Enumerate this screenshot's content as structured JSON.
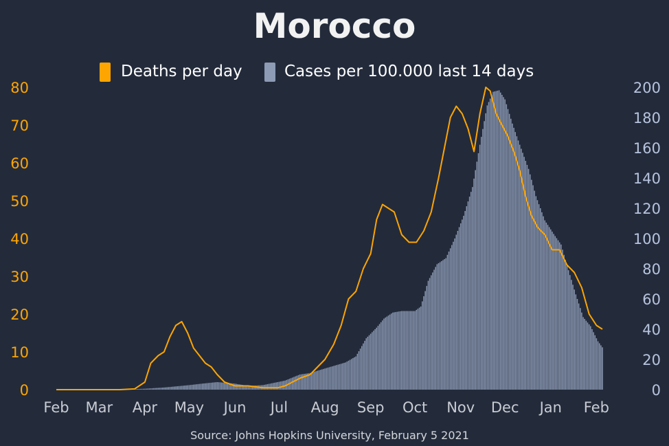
{
  "chart_data": {
    "type": "bar+line",
    "title": "Morocco",
    "source": "Source: Johns Hopkins University, February 5 2021",
    "legend": {
      "placement": "top-center"
    },
    "colors": {
      "background": "#232b3b",
      "deaths": "#ffa500",
      "cases": "#8d9bb5",
      "text": "#ffffff",
      "tick": "#c9ccd3"
    },
    "x_axis": {
      "ticks": [
        "Feb",
        "Mar",
        "Apr",
        "May",
        "Jun",
        "Jul",
        "Aug",
        "Sep",
        "Oct",
        "Nov",
        "Dec",
        "Jan",
        "Feb"
      ]
    },
    "y_left": {
      "ticks": [
        0,
        10,
        20,
        30,
        40,
        50,
        60,
        70,
        80
      ],
      "ylim": [
        0,
        80
      ]
    },
    "y_right": {
      "ticks": [
        0,
        20,
        40,
        60,
        80,
        100,
        120,
        140,
        160,
        180,
        200
      ],
      "ylim": [
        0,
        200
      ]
    },
    "x_range": [
      "2020-02-01",
      "2021-02-05"
    ],
    "series": [
      {
        "name": "Deaths per day",
        "kind": "line",
        "axis": "left",
        "points": [
          [
            "2020-02-01",
            0
          ],
          [
            "2020-03-15",
            0
          ],
          [
            "2020-03-25",
            0.2
          ],
          [
            "2020-04-01",
            2
          ],
          [
            "2020-04-05",
            7
          ],
          [
            "2020-04-10",
            9
          ],
          [
            "2020-04-14",
            10
          ],
          [
            "2020-04-18",
            14
          ],
          [
            "2020-04-22",
            17
          ],
          [
            "2020-04-26",
            18
          ],
          [
            "2020-04-30",
            15
          ],
          [
            "2020-05-04",
            11
          ],
          [
            "2020-05-08",
            9
          ],
          [
            "2020-05-12",
            7
          ],
          [
            "2020-05-16",
            6
          ],
          [
            "2020-05-20",
            4
          ],
          [
            "2020-05-25",
            2
          ],
          [
            "2020-06-01",
            1
          ],
          [
            "2020-06-10",
            1
          ],
          [
            "2020-06-20",
            0.5
          ],
          [
            "2020-06-30",
            0.5
          ],
          [
            "2020-07-05",
            1
          ],
          [
            "2020-07-10",
            2
          ],
          [
            "2020-07-15",
            3
          ],
          [
            "2020-07-22",
            4
          ],
          [
            "2020-08-01",
            8
          ],
          [
            "2020-08-07",
            12
          ],
          [
            "2020-08-12",
            17
          ],
          [
            "2020-08-17",
            24
          ],
          [
            "2020-08-22",
            26
          ],
          [
            "2020-08-27",
            32
          ],
          [
            "2020-09-01",
            36
          ],
          [
            "2020-09-05",
            45
          ],
          [
            "2020-09-09",
            49
          ],
          [
            "2020-09-13",
            48
          ],
          [
            "2020-09-17",
            47
          ],
          [
            "2020-09-22",
            41
          ],
          [
            "2020-09-27",
            39
          ],
          [
            "2020-10-02",
            39
          ],
          [
            "2020-10-07",
            42
          ],
          [
            "2020-10-12",
            47
          ],
          [
            "2020-10-17",
            56
          ],
          [
            "2020-10-21",
            64
          ],
          [
            "2020-10-25",
            72
          ],
          [
            "2020-10-29",
            75
          ],
          [
            "2020-11-02",
            73
          ],
          [
            "2020-11-06",
            69
          ],
          [
            "2020-11-10",
            63
          ],
          [
            "2020-11-14",
            73
          ],
          [
            "2020-11-18",
            80
          ],
          [
            "2020-11-21",
            79
          ],
          [
            "2020-11-25",
            73
          ],
          [
            "2020-11-29",
            70
          ],
          [
            "2020-12-03",
            67
          ],
          [
            "2020-12-07",
            63
          ],
          [
            "2020-12-11",
            58
          ],
          [
            "2020-12-15",
            51
          ],
          [
            "2020-12-19",
            46
          ],
          [
            "2020-12-23",
            43
          ],
          [
            "2020-12-28",
            41
          ],
          [
            "2021-01-02",
            37
          ],
          [
            "2021-01-07",
            37
          ],
          [
            "2021-01-12",
            33
          ],
          [
            "2021-01-17",
            31
          ],
          [
            "2021-01-22",
            27
          ],
          [
            "2021-01-27",
            20
          ],
          [
            "2021-02-01",
            17
          ],
          [
            "2021-02-05",
            16
          ]
        ]
      },
      {
        "name": "Cases per 100.000 last 14 days",
        "kind": "bar",
        "axis": "right",
        "points": [
          [
            "2020-02-01",
            0
          ],
          [
            "2020-03-10",
            0
          ],
          [
            "2020-03-20",
            0.2
          ],
          [
            "2020-04-01",
            0.6
          ],
          [
            "2020-04-15",
            1.5
          ],
          [
            "2020-05-01",
            3
          ],
          [
            "2020-05-10",
            4
          ],
          [
            "2020-05-20",
            5
          ],
          [
            "2020-06-01",
            4
          ],
          [
            "2020-06-10",
            2.5
          ],
          [
            "2020-06-20",
            3
          ],
          [
            "2020-06-30",
            5
          ],
          [
            "2020-07-05",
            6
          ],
          [
            "2020-07-10",
            8
          ],
          [
            "2020-07-15",
            10
          ],
          [
            "2020-07-22",
            11
          ],
          [
            "2020-08-01",
            14
          ],
          [
            "2020-08-08",
            16
          ],
          [
            "2020-08-15",
            18
          ],
          [
            "2020-08-22",
            22
          ],
          [
            "2020-08-29",
            34
          ],
          [
            "2020-09-05",
            41
          ],
          [
            "2020-09-10",
            47
          ],
          [
            "2020-09-16",
            51
          ],
          [
            "2020-09-22",
            52
          ],
          [
            "2020-09-28",
            52
          ],
          [
            "2020-10-01",
            52
          ],
          [
            "2020-10-05",
            55
          ],
          [
            "2020-10-10",
            72
          ],
          [
            "2020-10-16",
            83
          ],
          [
            "2020-10-22",
            87
          ],
          [
            "2020-10-28",
            100
          ],
          [
            "2020-11-03",
            115
          ],
          [
            "2020-11-09",
            134
          ],
          [
            "2020-11-14",
            162
          ],
          [
            "2020-11-19",
            188
          ],
          [
            "2020-11-23",
            197
          ],
          [
            "2020-11-27",
            198
          ],
          [
            "2020-12-01",
            192
          ],
          [
            "2020-12-06",
            176
          ],
          [
            "2020-12-11",
            162
          ],
          [
            "2020-12-17",
            146
          ],
          [
            "2020-12-22",
            128
          ],
          [
            "2020-12-28",
            112
          ],
          [
            "2021-01-03",
            103
          ],
          [
            "2021-01-08",
            96
          ],
          [
            "2021-01-13",
            79
          ],
          [
            "2021-01-18",
            63
          ],
          [
            "2021-01-23",
            48
          ],
          [
            "2021-01-28",
            42
          ],
          [
            "2021-02-02",
            32
          ],
          [
            "2021-02-05",
            28
          ]
        ]
      }
    ]
  }
}
